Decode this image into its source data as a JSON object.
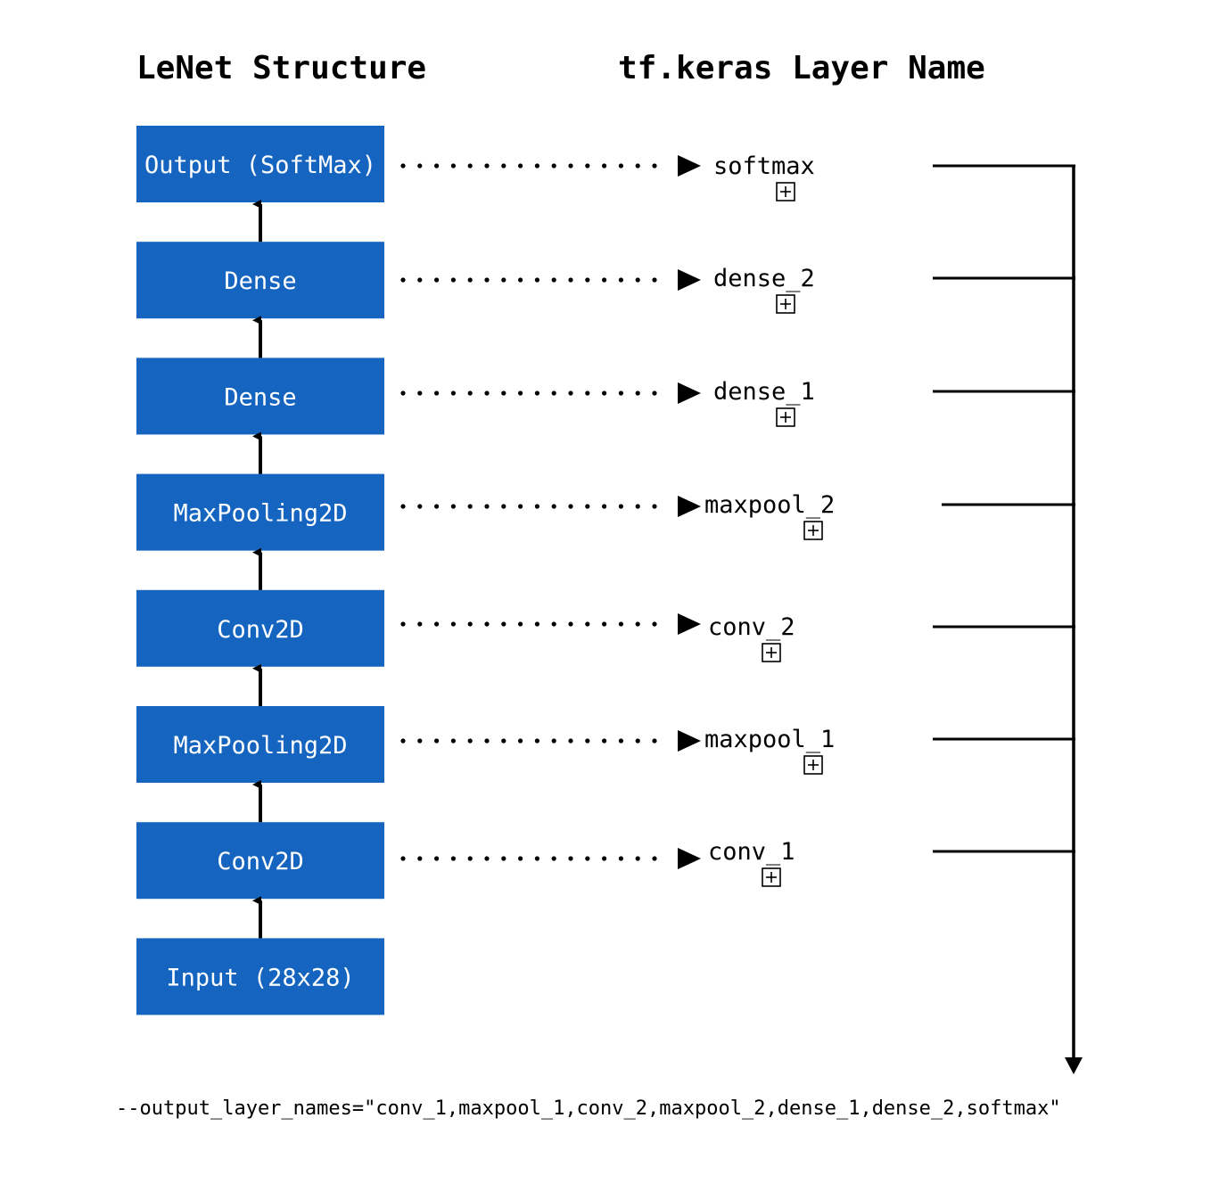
{
  "headings": {
    "structure": "LeNet Structure",
    "layer_names": "tf.keras Layer Name"
  },
  "colors": {
    "box_fill": "#1565c0",
    "box_text": "#ffffff",
    "line": "#000000",
    "background": "#ffffff"
  },
  "layers": [
    {
      "label": "Output (SoftMax)",
      "name": "softmax"
    },
    {
      "label": "Dense",
      "name": "dense_2"
    },
    {
      "label": "Dense",
      "name": "dense_1"
    },
    {
      "label": "MaxPooling2D",
      "name": "maxpool_2"
    },
    {
      "label": "Conv2D",
      "name": "conv_2"
    },
    {
      "label": "MaxPooling2D",
      "name": "maxpool_1"
    },
    {
      "label": "Conv2D",
      "name": "conv_1"
    },
    {
      "label": "Input (28x28)",
      "name": ""
    }
  ],
  "expand_icon": "plus-square-icon",
  "command": "--output_layer_names=\"conv_1,maxpool_1,conv_2,maxpool_2,dense_1,dense_2,softmax\""
}
